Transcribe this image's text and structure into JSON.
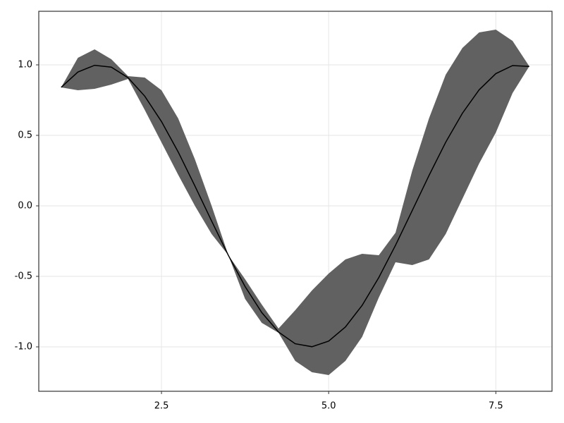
{
  "chart_data": {
    "type": "line",
    "x": [
      1,
      1.25,
      1.5,
      1.75,
      2,
      2.25,
      2.5,
      2.75,
      3,
      3.25,
      3.5,
      3.75,
      4,
      4.25,
      4.5,
      4.75,
      5,
      5.25,
      5.5,
      5.75,
      6,
      6.25,
      6.5,
      6.75,
      7,
      7.25,
      7.5,
      7.75,
      8
    ],
    "series": [
      {
        "color": "#000000",
        "values": [
          0.841,
          0.949,
          0.997,
          0.984,
          0.909,
          0.778,
          0.598,
          0.382,
          0.141,
          -0.108,
          -0.351,
          -0.572,
          -0.757,
          -0.895,
          -0.978,
          -0.999,
          -0.959,
          -0.859,
          -0.706,
          -0.508,
          -0.279,
          -0.033,
          0.215,
          0.451,
          0.657,
          0.823,
          0.938,
          0.995,
          0.989
        ]
      }
    ],
    "band": {
      "color": "#616161",
      "upper": [
        0.84,
        1.05,
        1.11,
        1.04,
        0.92,
        0.91,
        0.82,
        0.62,
        0.33,
        0.0,
        -0.35,
        -0.52,
        -0.7,
        -0.87,
        -0.74,
        -0.6,
        -0.48,
        -0.38,
        -0.34,
        -0.35,
        -0.19,
        0.25,
        0.62,
        0.93,
        1.12,
        1.23,
        1.25,
        1.17,
        0.99
      ],
      "lower": [
        0.84,
        0.82,
        0.83,
        0.86,
        0.9,
        0.68,
        0.45,
        0.22,
        0.0,
        -0.2,
        -0.35,
        -0.66,
        -0.83,
        -0.9,
        -1.1,
        -1.18,
        -1.2,
        -1.1,
        -0.93,
        -0.65,
        -0.4,
        -0.42,
        -0.38,
        -0.2,
        0.05,
        0.3,
        0.52,
        0.8,
        0.99
      ]
    },
    "xlim": [
      0.665,
      8.34
    ],
    "ylim": [
      -1.315,
      1.38
    ],
    "xticks": [
      {
        "value": 2.5,
        "label": "2.5"
      },
      {
        "value": 5,
        "label": "5.0"
      },
      {
        "value": 7.5,
        "label": "7.5"
      }
    ],
    "yticks": [
      {
        "value": -1,
        "label": "-1.0"
      },
      {
        "value": -0.5,
        "label": "-0.5"
      },
      {
        "value": 0,
        "label": "0.0"
      },
      {
        "value": 0.5,
        "label": "0.5"
      },
      {
        "value": 1,
        "label": "1.0"
      }
    ],
    "grid": true
  }
}
